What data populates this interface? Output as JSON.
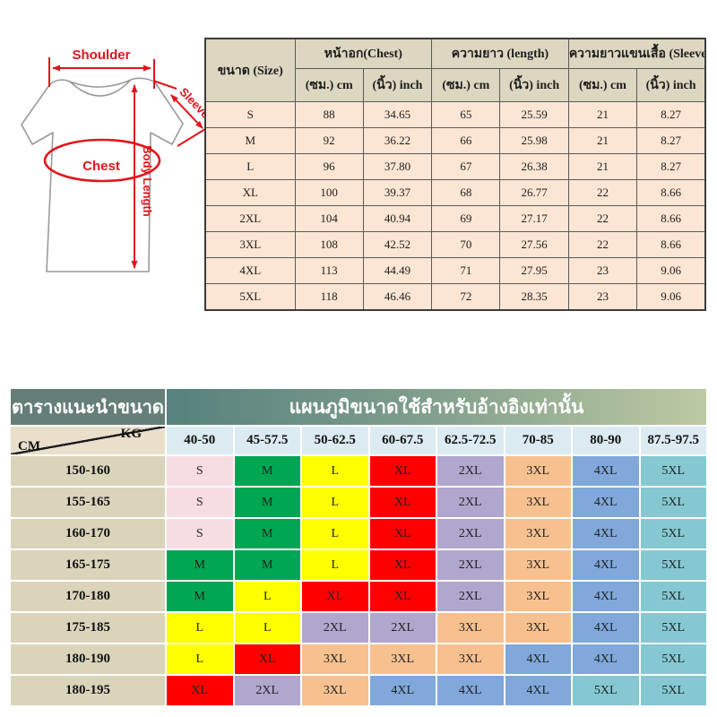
{
  "diagram": {
    "labels": {
      "shoulder": "Shoulder",
      "sleeve": "Sleeve",
      "chest": "Chest",
      "body_length": "Body Length"
    },
    "annotation_color": "#e2151b"
  },
  "size_table": {
    "headers": {
      "size": "ขนาด (Size)",
      "chest": "หน้าอก(Chest)",
      "length": "ความยาว (length)",
      "sleeve": "ความยาวแขนเสื้อ (Sleeve)",
      "cm": "(ซม.) cm",
      "inch": "(นิ้ว) inch"
    },
    "rows": [
      [
        "S",
        "88",
        "34.65",
        "65",
        "25.59",
        "21",
        "8.27"
      ],
      [
        "M",
        "92",
        "36.22",
        "66",
        "25.98",
        "21",
        "8.27"
      ],
      [
        "L",
        "96",
        "37.80",
        "67",
        "26.38",
        "21",
        "8.27"
      ],
      [
        "XL",
        "100",
        "39.37",
        "68",
        "26.77",
        "22",
        "8.66"
      ],
      [
        "2XL",
        "104",
        "40.94",
        "69",
        "27.17",
        "22",
        "8.66"
      ],
      [
        "3XL",
        "108",
        "42.52",
        "70",
        "27.56",
        "22",
        "8.66"
      ],
      [
        "4XL",
        "113",
        "44.49",
        "71",
        "27.95",
        "23",
        "9.06"
      ],
      [
        "5XL",
        "118",
        "46.46",
        "72",
        "28.35",
        "23",
        "9.06"
      ]
    ]
  },
  "reco_chart": {
    "title_left": "ตารางแนะนำขนาด",
    "title_right": "แผนภูมิขนาดใช้สำหรับอ้างอิงเท่านั้น",
    "unit_kg": "KG",
    "unit_cm": "CM",
    "weight_columns": [
      "40-50",
      "45-57.5",
      "50-62.5",
      "60-67.5",
      "62.5-72.5",
      "70-85",
      "80-90",
      "87.5-97.5"
    ],
    "rows": [
      {
        "height": "150-160",
        "sizes": [
          "S",
          "M",
          "L",
          "XL",
          "2XL",
          "3XL",
          "4XL",
          "5XL"
        ]
      },
      {
        "height": "155-165",
        "sizes": [
          "S",
          "M",
          "L",
          "XL",
          "2XL",
          "3XL",
          "4XL",
          "5XL"
        ]
      },
      {
        "height": "160-170",
        "sizes": [
          "S",
          "M",
          "L",
          "XL",
          "2XL",
          "3XL",
          "4XL",
          "5XL"
        ]
      },
      {
        "height": "165-175",
        "sizes": [
          "M",
          "M",
          "L",
          "XL",
          "2XL",
          "3XL",
          "4XL",
          "5XL"
        ]
      },
      {
        "height": "170-180",
        "sizes": [
          "M",
          "L",
          "XL",
          "XL",
          "2XL",
          "3XL",
          "4XL",
          "5XL"
        ]
      },
      {
        "height": "175-185",
        "sizes": [
          "L",
          "L",
          "2XL",
          "2XL",
          "3XL",
          "3XL",
          "4XL",
          "5XL"
        ]
      },
      {
        "height": "180-190",
        "sizes": [
          "L",
          "XL",
          "3XL",
          "3XL",
          "3XL",
          "4XL",
          "4XL",
          "5XL"
        ]
      },
      {
        "height": "180-195",
        "sizes": [
          "XL",
          "2XL",
          "3XL",
          "4XL",
          "4XL",
          "4XL",
          "5XL",
          "5XL"
        ]
      }
    ],
    "size_colors": {
      "S": "#f7dce2",
      "M": "#00a651",
      "L": "#ffff00",
      "XL": "#fe0000",
      "2XL": "#b1a6ce",
      "3XL": "#f7c18f",
      "4XL": "#80a8db",
      "5XL": "#85c8d2"
    },
    "styles": {
      "title_left_bg": "#657f78",
      "title_right_gradient_start": "#57817d",
      "title_right_gradient_end": "#bcc9a2",
      "weight_header_bg": "#dcebf2",
      "height_header_bg": "#dad4bb",
      "corner_bg": "#e9dfcb"
    }
  }
}
